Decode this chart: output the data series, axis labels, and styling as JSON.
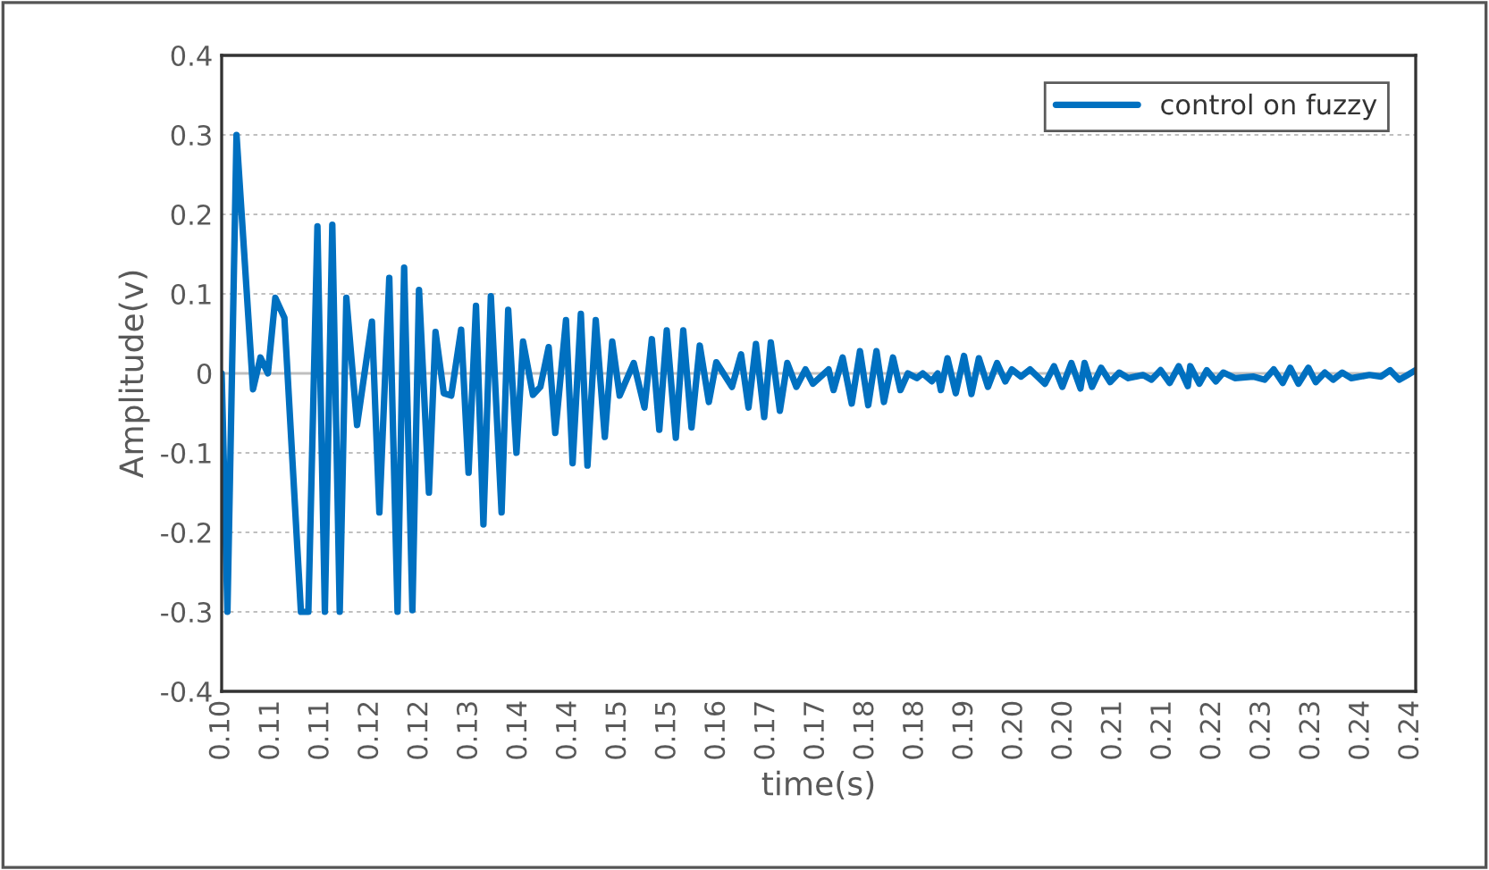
{
  "chart_data": {
    "type": "line",
    "xlabel": "time(s)",
    "ylabel": "Amplitude(v)",
    "xlim": [
      0.1,
      0.2446
    ],
    "xticks": [
      {
        "value": 0.1,
        "label": "0.10"
      },
      {
        "value": 0.106,
        "label": "0.11"
      },
      {
        "value": 0.112,
        "label": "0.11"
      },
      {
        "value": 0.118,
        "label": "0.12"
      },
      {
        "value": 0.124,
        "label": "0.12"
      },
      {
        "value": 0.13,
        "label": "0.13"
      },
      {
        "value": 0.136,
        "label": "0.14"
      },
      {
        "value": 0.142,
        "label": "0.14"
      },
      {
        "value": 0.148,
        "label": "0.15"
      },
      {
        "value": 0.154,
        "label": "0.15"
      },
      {
        "value": 0.16,
        "label": "0.16"
      },
      {
        "value": 0.166,
        "label": "0.17"
      },
      {
        "value": 0.172,
        "label": "0.17"
      },
      {
        "value": 0.178,
        "label": "0.18"
      },
      {
        "value": 0.184,
        "label": "0.18"
      },
      {
        "value": 0.19,
        "label": "0.19"
      },
      {
        "value": 0.196,
        "label": "0.20"
      },
      {
        "value": 0.202,
        "label": "0.20"
      },
      {
        "value": 0.208,
        "label": "0.21"
      },
      {
        "value": 0.214,
        "label": "0.21"
      },
      {
        "value": 0.22,
        "label": "0.22"
      },
      {
        "value": 0.226,
        "label": "0.23"
      },
      {
        "value": 0.232,
        "label": "0.23"
      },
      {
        "value": 0.238,
        "label": "0.24"
      },
      {
        "value": 0.244,
        "label": "0.24"
      }
    ],
    "ylim": [
      -0.4,
      0.4
    ],
    "yticks": [
      {
        "value": -0.4,
        "label": "-0.4"
      },
      {
        "value": -0.3,
        "label": "-0.3"
      },
      {
        "value": -0.2,
        "label": "-0.2"
      },
      {
        "value": -0.1,
        "label": "-0.1"
      },
      {
        "value": 0,
        "label": "0"
      },
      {
        "value": 0.1,
        "label": "0.1"
      },
      {
        "value": 0.2,
        "label": "0.2"
      },
      {
        "value": 0.3,
        "label": "0.3"
      },
      {
        "value": 0.4,
        "label": "0.4"
      }
    ],
    "grid": "y",
    "legend": "top right",
    "marker": "none",
    "line_style": "solid",
    "series": [
      {
        "name": "control on fuzzy",
        "color": "#0070c0",
        "x": [
          0.1,
          0.1007,
          0.1018,
          0.1038,
          0.1047,
          0.1056,
          0.1065,
          0.1076,
          0.1096,
          0.1105,
          0.1116,
          0.1125,
          0.1134,
          0.1143,
          0.1151,
          0.1164,
          0.1182,
          0.1191,
          0.1203,
          0.1213,
          0.1221,
          0.1231,
          0.1239,
          0.1251,
          0.1259,
          0.1269,
          0.1278,
          0.129,
          0.1299,
          0.1308,
          0.1317,
          0.1326,
          0.1339,
          0.1347,
          0.1357,
          0.1365,
          0.1377,
          0.1386,
          0.1396,
          0.1404,
          0.1417,
          0.1425,
          0.1435,
          0.1443,
          0.1453,
          0.1464,
          0.1473,
          0.1482,
          0.1499,
          0.1512,
          0.1521,
          0.153,
          0.1539,
          0.155,
          0.1559,
          0.1569,
          0.1579,
          0.159,
          0.1599,
          0.1618,
          0.1629,
          0.1638,
          0.1647,
          0.1657,
          0.1665,
          0.1676,
          0.1685,
          0.1696,
          0.1707,
          0.1716,
          0.1735,
          0.1741,
          0.1752,
          0.1763,
          0.1773,
          0.1783,
          0.1793,
          0.1802,
          0.1813,
          0.1822,
          0.1831,
          0.1842,
          0.1849,
          0.186,
          0.1867,
          0.1871,
          0.1879,
          0.1889,
          0.1899,
          0.1908,
          0.1917,
          0.1928,
          0.1939,
          0.1949,
          0.1957,
          0.1968,
          0.1979,
          0.1997,
          0.2008,
          0.2018,
          0.2029,
          0.204,
          0.2045,
          0.2054,
          0.2065,
          0.2076,
          0.2087,
          0.2098,
          0.2116,
          0.2126,
          0.2137,
          0.2148,
          0.2159,
          0.217,
          0.2173,
          0.2184,
          0.2193,
          0.2204,
          0.2213,
          0.2227,
          0.2249,
          0.2263,
          0.2274,
          0.2285,
          0.2294,
          0.2304,
          0.2316,
          0.2325,
          0.2336,
          0.2346,
          0.2357,
          0.2368,
          0.239,
          0.2404,
          0.2415,
          0.2426,
          0.2436,
          0.2446
        ],
        "values": [
          0,
          -0.3,
          0.3,
          -0.02,
          0.02,
          0.0,
          0.095,
          0.07,
          -0.3,
          -0.3,
          0.185,
          -0.3,
          0.187,
          -0.3,
          0.095,
          -0.065,
          0.065,
          -0.175,
          0.12,
          -0.3,
          0.133,
          -0.298,
          0.105,
          -0.15,
          0.052,
          -0.025,
          -0.028,
          0.055,
          -0.125,
          0.085,
          -0.19,
          0.097,
          -0.175,
          0.08,
          -0.1,
          0.04,
          -0.027,
          -0.017,
          0.033,
          -0.075,
          0.067,
          -0.113,
          0.075,
          -0.116,
          0.067,
          -0.08,
          0.04,
          -0.028,
          0.013,
          -0.043,
          0.043,
          -0.071,
          0.054,
          -0.081,
          0.054,
          -0.068,
          0.035,
          -0.036,
          0.014,
          -0.017,
          0.024,
          -0.043,
          0.037,
          -0.055,
          0.039,
          -0.047,
          0.013,
          -0.017,
          0.005,
          -0.013,
          0.005,
          -0.021,
          0.02,
          -0.038,
          0.028,
          -0.04,
          0.028,
          -0.036,
          0.02,
          -0.021,
          0.0,
          -0.006,
          0.0,
          -0.01,
          0.0,
          -0.021,
          0.019,
          -0.025,
          0.022,
          -0.026,
          0.019,
          -0.017,
          0.013,
          -0.01,
          0.005,
          -0.004,
          0.005,
          -0.013,
          0.009,
          -0.017,
          0.013,
          -0.019,
          0.013,
          -0.017,
          0.007,
          -0.011,
          0.001,
          -0.006,
          -0.002,
          -0.008,
          0.004,
          -0.012,
          0.009,
          -0.016,
          0.009,
          -0.013,
          0.004,
          -0.01,
          0.001,
          -0.006,
          -0.004,
          -0.008,
          0.005,
          -0.012,
          0.007,
          -0.013,
          0.007,
          -0.011,
          0.001,
          -0.008,
          0.001,
          -0.006,
          -0.002,
          -0.004,
          0.004,
          -0.008,
          -0.002,
          0.004
        ]
      }
    ]
  }
}
